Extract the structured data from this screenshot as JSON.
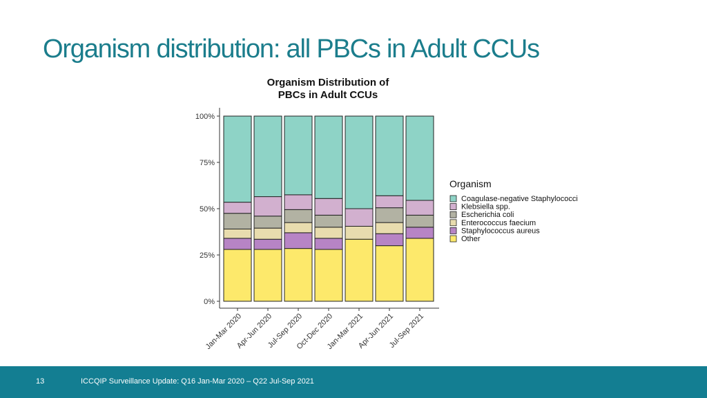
{
  "slide": {
    "title": "Organism distribution: all PBCs in Adult CCUs"
  },
  "footer": {
    "page_number": "13",
    "text": "ICCQIP Surveillance Update: Q16 Jan-Mar 2020 – Q22 Jul-Sep 2021"
  },
  "chart_data": {
    "type": "bar",
    "stacked": true,
    "title_lines": [
      "Organism Distribution of",
      "PBCs in Adult CCUs"
    ],
    "xlabel": "",
    "ylabel": "",
    "ylim": [
      0,
      1
    ],
    "y_ticks": [
      0,
      0.25,
      0.5,
      0.75,
      1.0
    ],
    "y_tick_labels": [
      "0%",
      "25%",
      "50%",
      "75%",
      "100%"
    ],
    "grid": false,
    "legend_title": "Organism",
    "legend_position": "right",
    "categories": [
      "Jan-Mar 2020",
      "Apr-Jun 2020",
      "Jul-Sep 2020",
      "Oct-Dec 2020",
      "Jan-Mar 2021",
      "Apr-Jun 2021",
      "Jul-Sep 2021"
    ],
    "series": [
      {
        "name": "Other",
        "color": "#fde96b",
        "values": [
          0.28,
          0.28,
          0.285,
          0.28,
          0.335,
          0.3,
          0.34
        ]
      },
      {
        "name": "Staphylococcus aureus",
        "color": "#b784c5",
        "values": [
          0.06,
          0.055,
          0.085,
          0.06,
          0.0,
          0.065,
          0.06
        ]
      },
      {
        "name": "Enterococcus faecium",
        "color": "#e8dcae",
        "values": [
          0.05,
          0.06,
          0.055,
          0.06,
          0.07,
          0.06,
          0.0
        ]
      },
      {
        "name": "Escherichia coli",
        "color": "#b2b2a3",
        "values": [
          0.085,
          0.065,
          0.07,
          0.065,
          0.0,
          0.08,
          0.065
        ]
      },
      {
        "name": "Klebsiella spp.",
        "color": "#d2b0cf",
        "values": [
          0.06,
          0.105,
          0.08,
          0.09,
          0.095,
          0.065,
          0.08
        ]
      },
      {
        "name": "Coagulase-negative Staphylococci",
        "color": "#8ed3c6",
        "values": [
          0.465,
          0.435,
          0.425,
          0.445,
          0.5,
          0.43,
          0.455
        ]
      }
    ],
    "legend_order": [
      "Coagulase-negative Staphylococci",
      "Klebsiella spp.",
      "Escherichia coli",
      "Enterococcus faecium",
      "Staphylococcus aureus",
      "Other"
    ]
  }
}
